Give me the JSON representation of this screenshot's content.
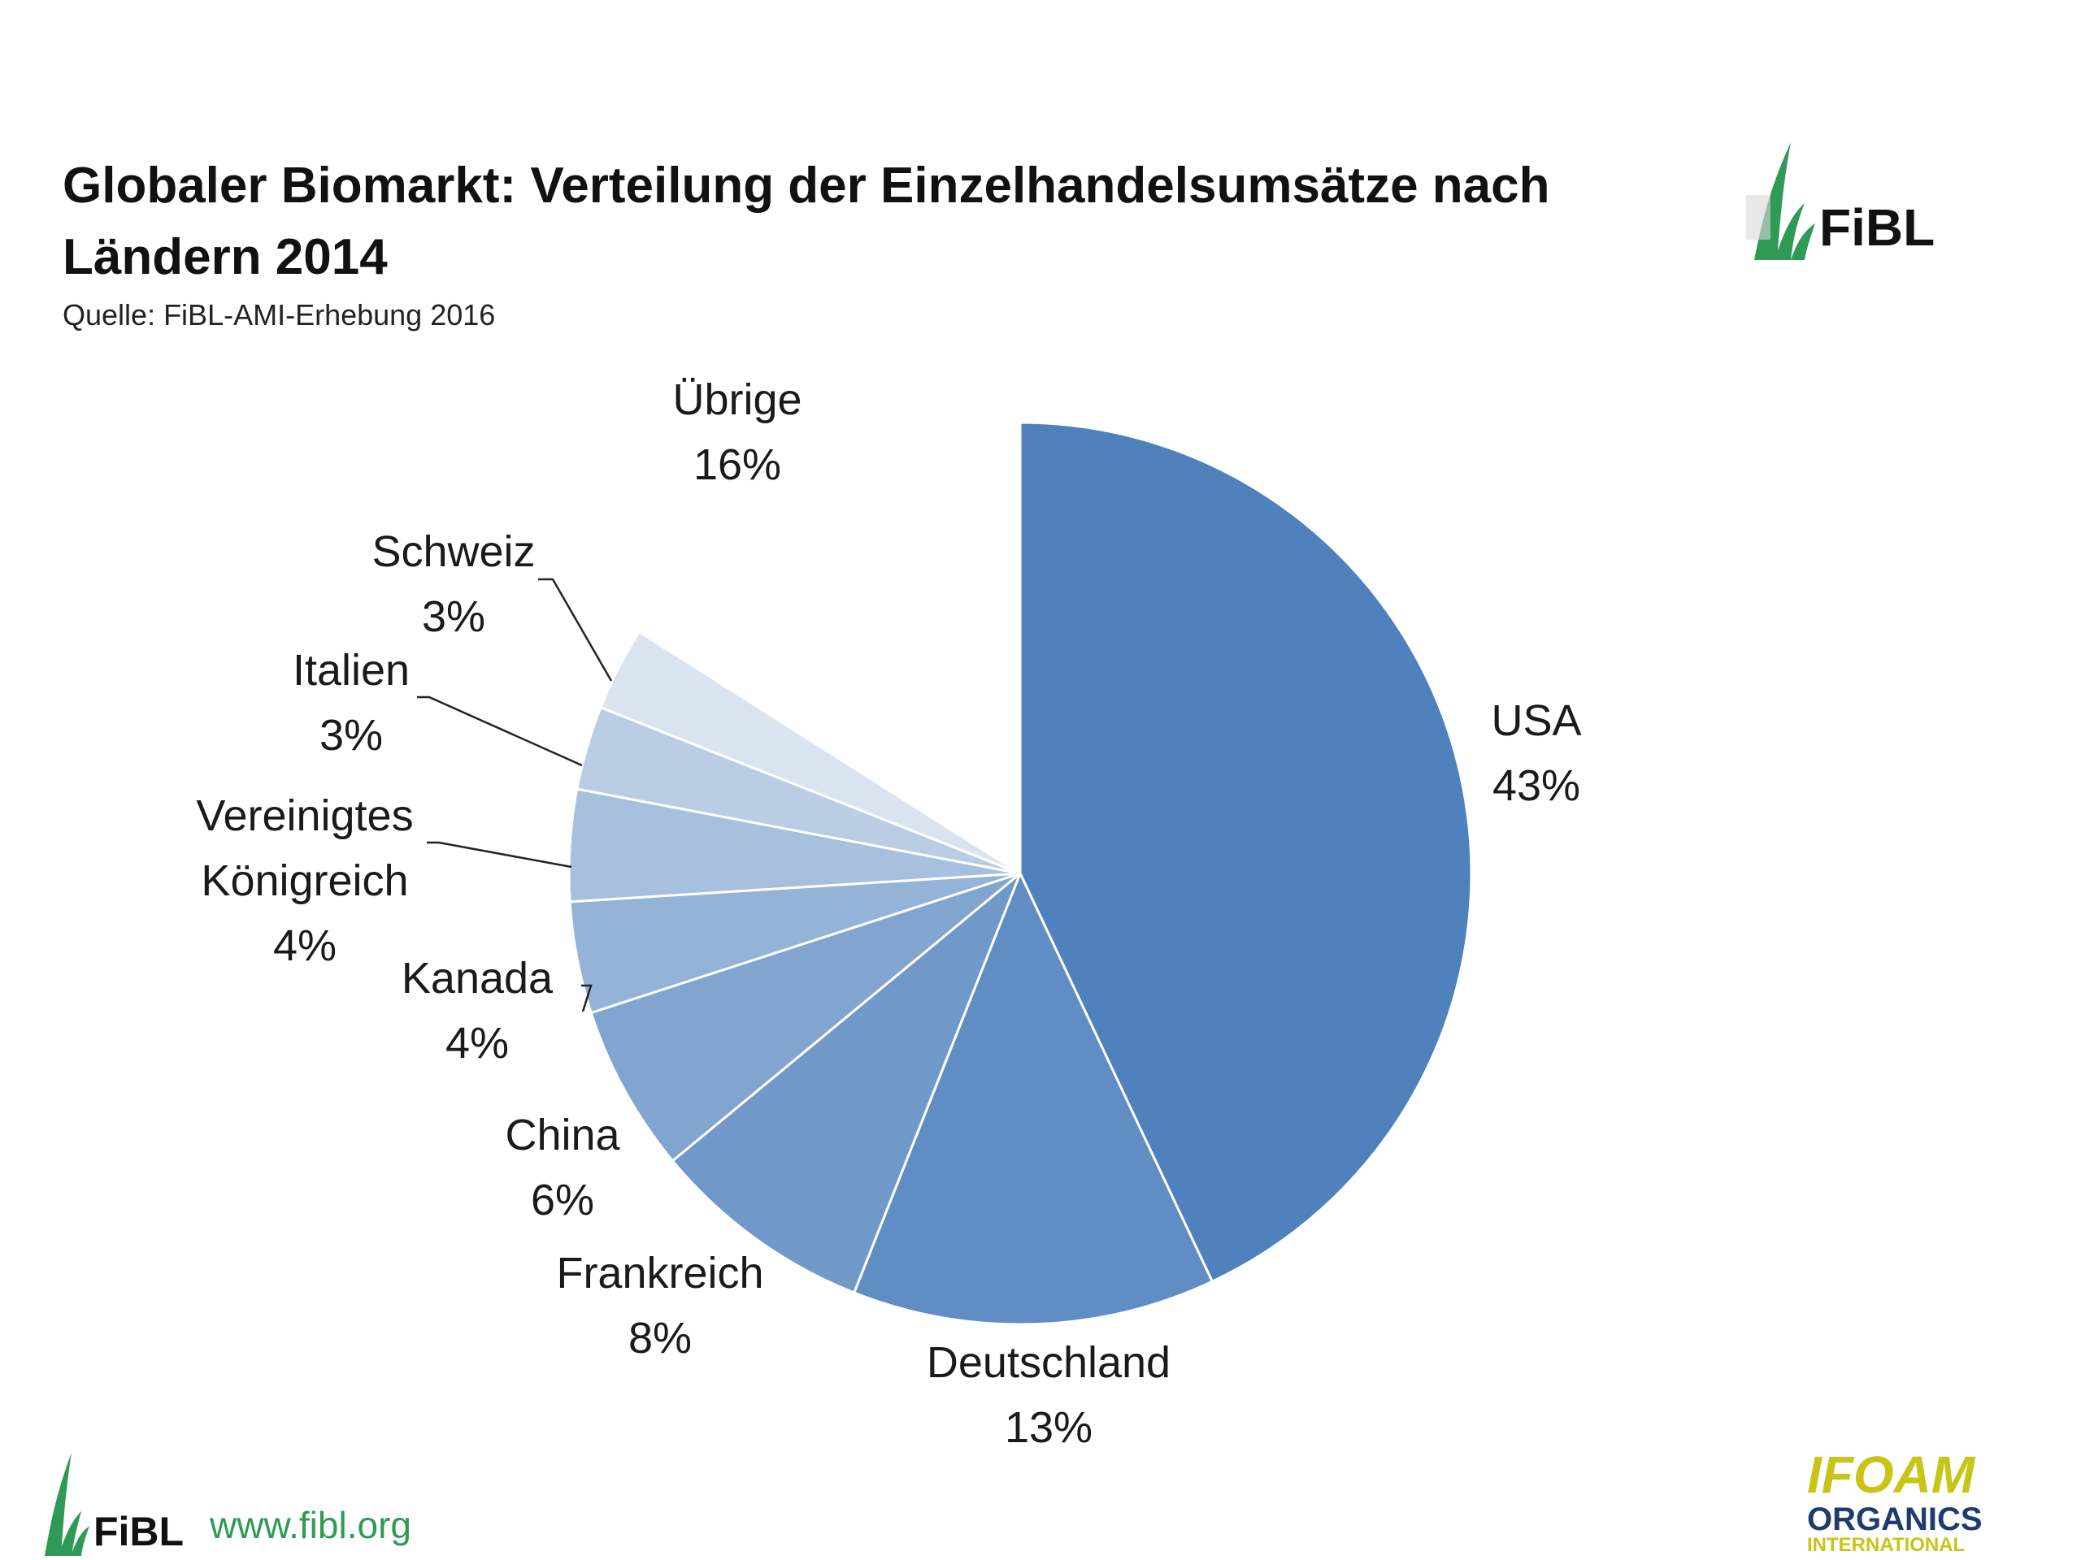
{
  "header": {
    "title": "Globaler Biomarkt: Verteilung der Einzelhandelsumsätze nach Ländern 2014",
    "source": "Quelle: FiBL-AMI-Erhebung 2016"
  },
  "logos": {
    "fibl": "FiBL",
    "url": "www.fibl.org",
    "ifoam_line1": "IFOAM",
    "ifoam_line2": "ORGANICS",
    "ifoam_line3": "INTERNATIONAL"
  },
  "colors": {
    "fibl_green": "#2f9a55",
    "ifoam_yellow": "#c8c418",
    "ifoam_blue": "#1f3c6e"
  },
  "chart_data": {
    "type": "pie",
    "title": "Globaler Biomarkt: Verteilung der Einzelhandelsumsätze nach Ländern 2014",
    "slices": [
      {
        "label": "USA",
        "value": 43,
        "value_label": "43%",
        "color": "#4f81bd"
      },
      {
        "label": "Deutschland",
        "value": 13,
        "value_label": "13%",
        "color": "#5f8dc4"
      },
      {
        "label": "Frankreich",
        "value": 8,
        "value_label": "8%",
        "color": "#7098c9"
      },
      {
        "label": "China",
        "value": 6,
        "value_label": "6%",
        "color": "#82a5d0"
      },
      {
        "label": "Kanada",
        "value": 4,
        "value_label": "4%",
        "color": "#95b3d7"
      },
      {
        "label": "Vereinigtes Königreich",
        "value": 4,
        "value_label": "4%",
        "color": "#a7c0de"
      },
      {
        "label": "Italien",
        "value": 3,
        "value_label": "3%",
        "color": "#bacde5"
      },
      {
        "label": "Schweiz",
        "value": 3,
        "value_label": "3%",
        "color": "#dae4f1"
      },
      {
        "label": "Übrige",
        "value": 16,
        "value_label": "16%",
        "color": "#ffffff"
      }
    ]
  }
}
